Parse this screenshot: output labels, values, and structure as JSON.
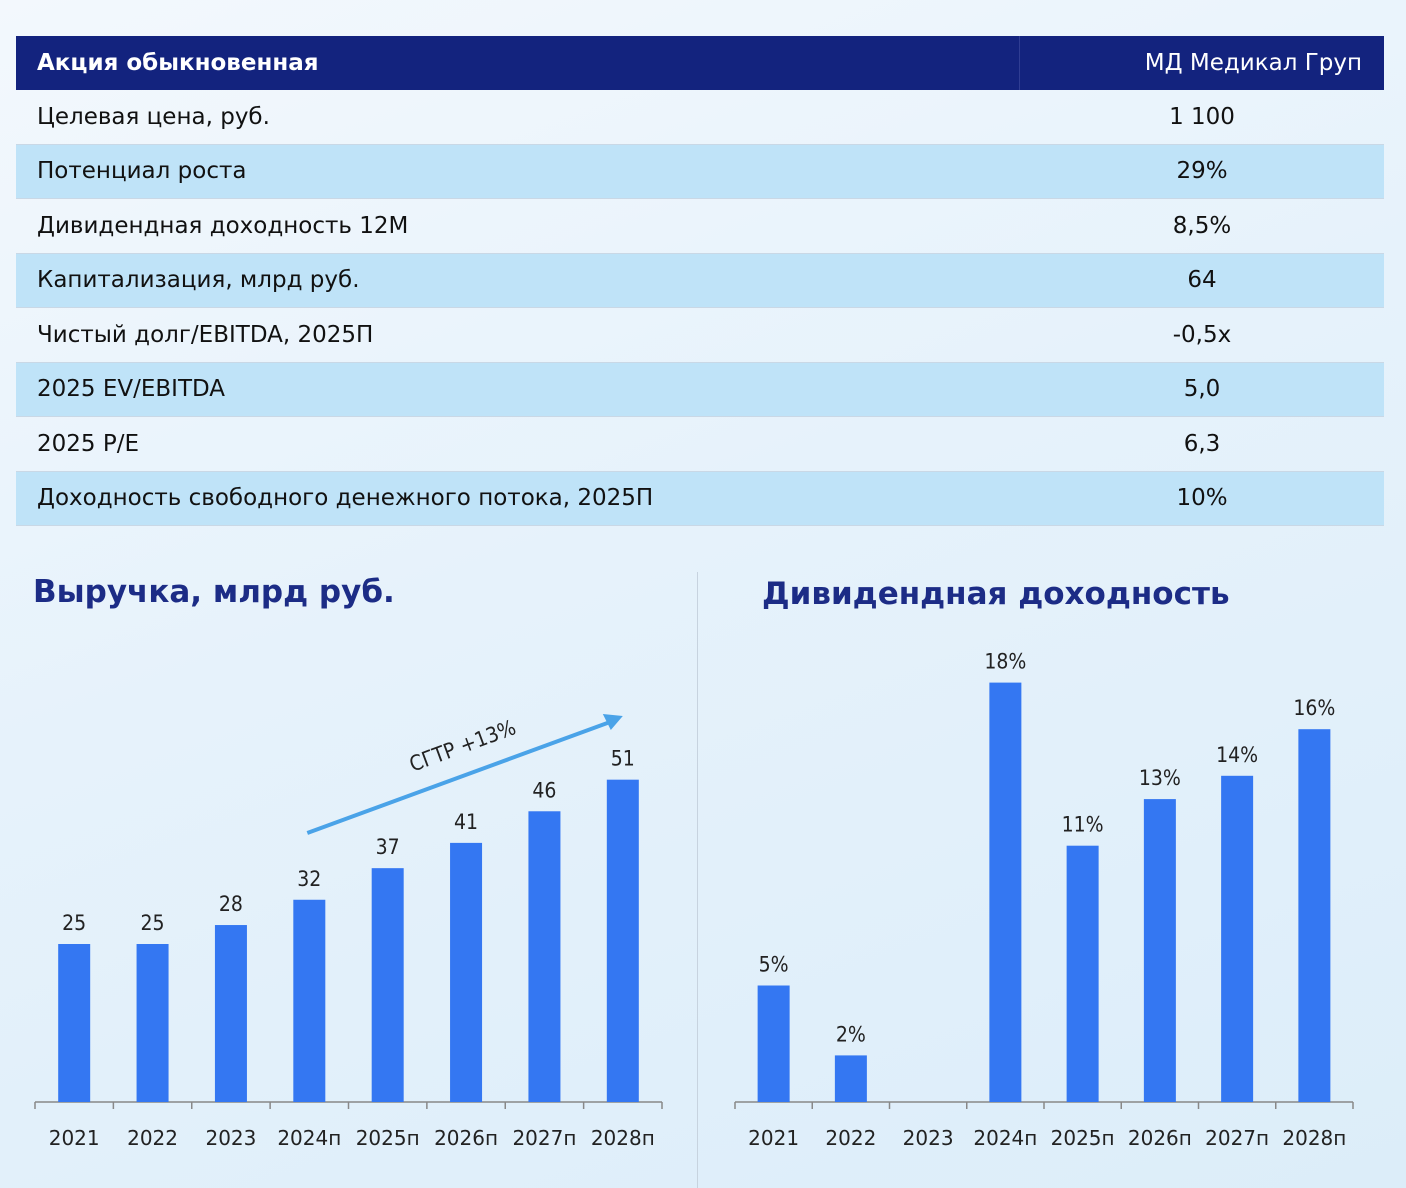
{
  "table": {
    "header": {
      "label": "Акция обыкновенная",
      "value": "МД Медикал Груп"
    },
    "rows": [
      {
        "label": "Целевая цена, руб.",
        "value": "1 100"
      },
      {
        "label": "Потенциал роста",
        "value": "29%"
      },
      {
        "label": "Дивидендная доходность 12М",
        "value": "8,5%"
      },
      {
        "label": "Капитализация, млрд руб.",
        "value": "64"
      },
      {
        "label": "Чистый долг/EBITDA, 2025П",
        "value": "-0,5x"
      },
      {
        "label": "2025 EV/EBITDA",
        "value": "5,0"
      },
      {
        "label": "2025 P/E",
        "value": "6,3"
      },
      {
        "label": "Доходность свободного денежного потока, 2025П",
        "value": "10%"
      }
    ]
  },
  "colors": {
    "header_bg": "#13237e",
    "bar": "#3477f2",
    "arrow": "#4aa3e8",
    "title": "#1c2c86",
    "alt_row": "#bfe3f8"
  },
  "chart_data": [
    {
      "type": "bar",
      "title": "Выручка, млрд руб.",
      "categories": [
        "2021",
        "2022",
        "2023",
        "2024п",
        "2025п",
        "2026п",
        "2027п",
        "2028п"
      ],
      "values": [
        25,
        25,
        28,
        32,
        37,
        41,
        46,
        51
      ],
      "labels": [
        "25",
        "25",
        "28",
        "32",
        "37",
        "41",
        "46",
        "51"
      ],
      "annotation": "CГТР +13%",
      "ylim": [
        0,
        60
      ]
    },
    {
      "type": "bar",
      "title": "Дивидендная доходность",
      "categories": [
        "2021",
        "2022",
        "2023",
        "2024п",
        "2025п",
        "2026п",
        "2027п",
        "2028п"
      ],
      "values": [
        5,
        2,
        null,
        18,
        11,
        13,
        14,
        16
      ],
      "labels": [
        "5%",
        "2%",
        "",
        "18%",
        "11%",
        "13%",
        "14%",
        "16%"
      ],
      "ylim": [
        0,
        20
      ]
    }
  ]
}
